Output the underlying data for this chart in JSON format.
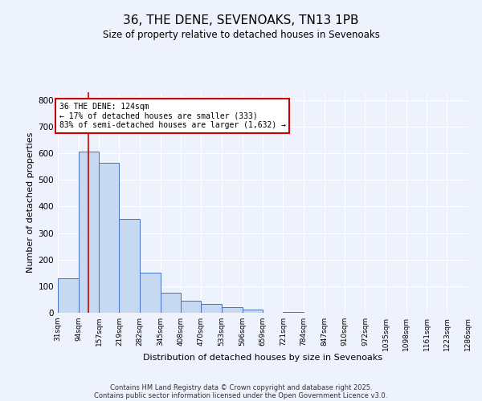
{
  "title": "36, THE DENE, SEVENOAKS, TN13 1PB",
  "subtitle": "Size of property relative to detached houses in Sevenoaks",
  "xlabel": "Distribution of detached houses by size in Sevenoaks",
  "ylabel": "Number of detached properties",
  "bar_edges": [
    31,
    94,
    157,
    219,
    282,
    345,
    408,
    470,
    533,
    596,
    659,
    721,
    784,
    847,
    910,
    972,
    1035,
    1098,
    1161,
    1223,
    1286
  ],
  "bar_heights": [
    130,
    607,
    565,
    352,
    151,
    76,
    46,
    32,
    20,
    12,
    0,
    3,
    0,
    0,
    0,
    0,
    0,
    0,
    0,
    0
  ],
  "bar_color": "#c6d9f1",
  "bar_edge_color": "#4472c4",
  "property_line_x": 124,
  "property_line_color": "#cc0000",
  "annotation_title": "36 THE DENE: 124sqm",
  "annotation_line1": "← 17% of detached houses are smaller (333)",
  "annotation_line2": "83% of semi-detached houses are larger (1,632) →",
  "annotation_box_color": "#cc0000",
  "ylim": [
    0,
    830
  ],
  "yticks": [
    0,
    100,
    200,
    300,
    400,
    500,
    600,
    700,
    800
  ],
  "tick_labels": [
    "31sqm",
    "94sqm",
    "157sqm",
    "219sqm",
    "282sqm",
    "345sqm",
    "408sqm",
    "470sqm",
    "533sqm",
    "596sqm",
    "659sqm",
    "721sqm",
    "784sqm",
    "847sqm",
    "910sqm",
    "972sqm",
    "1035sqm",
    "1098sqm",
    "1161sqm",
    "1223sqm",
    "1286sqm"
  ],
  "background_color": "#eef2fc",
  "footer_line1": "Contains HM Land Registry data © Crown copyright and database right 2025.",
  "footer_line2": "Contains public sector information licensed under the Open Government Licence v3.0.",
  "grid_color": "#ffffff"
}
